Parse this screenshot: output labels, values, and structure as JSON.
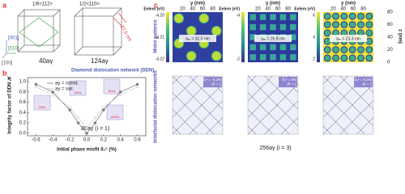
{
  "panel_a": {
    "label": "a",
    "burgers_1": "1/6<112>",
    "burgers_2": "1/2<110>",
    "size": "27.5 nm",
    "axis_z": "[001]",
    "axis_y": "[010]",
    "axis_x": "[100]",
    "cell_1": "40aγ",
    "cell_2": "124aγ",
    "ddn": "Diamond dislocation network (DDN)"
  },
  "chart_data": {
    "type": "line",
    "label": "b",
    "y_label": "Integrity factor of DDN 𝒦",
    "x_label": "Initial phase misfit δ₀ᶜ (%)",
    "x": [
      -0.6,
      -0.4,
      -0.2,
      -0.1,
      0,
      0.1,
      0.2,
      0.4,
      0.6
    ],
    "series": [
      {
        "name": "aγ = const.",
        "color": "#777777",
        "values": [
          0.95,
          0.8,
          0.45,
          0.2,
          0.0,
          0.2,
          0.45,
          0.8,
          0.95
        ]
      },
      {
        "name": "aγ = var.",
        "color": "#b5b5b5",
        "values": [
          0.9,
          0.75,
          0.5,
          0.3,
          0.1,
          0.3,
          0.5,
          0.75,
          0.9
        ]
      }
    ],
    "xlim": [
      -0.7,
      0.7
    ],
    "ylim": [
      -0.05,
      1.08
    ],
    "xticks": [
      -0.6,
      -0.4,
      -0.2,
      {
        "value": 0,
        "label": "0.0"
      },
      0.2,
      0.4,
      0.6
    ],
    "yticks": [
      {
        "value": 0,
        "label": "0.0"
      },
      0.2,
      0.4,
      0.6,
      0.8,
      {
        "value": 1,
        "label": "1.0"
      }
    ],
    "annotation": "86aγ (i = 1)",
    "inset_labels": [
      "SDN",
      "DDN",
      "SDN",
      "sDDN"
    ]
  },
  "panel_c": {
    "label": "c",
    "colorbar_title": "Eelem (eV)",
    "z_axis": "z (nm)",
    "z_ticks": [
      "80",
      "60",
      "40",
      "20",
      "0"
    ],
    "row_1": "Moiré patterns",
    "row_2": "Interfacial dislocation networks",
    "cell": "256aγ (i = 3)",
    "maps": [
      {
        "y_axis": "y (nm)",
        "y_ticks": [
          "20",
          "40",
          "60",
          "80"
        ],
        "colorbar_ticks": [
          "-4.20",
          "-4.21",
          "-4.22"
        ],
        "spacing": "aₘ = 31.5 nm",
        "misfit": "δ₀ᶜ = -0.2%",
        "integrity": "𝒦 = 1"
      },
      {
        "y_axis": "y (nm)",
        "y_ticks": [
          "20",
          "40",
          "60",
          "80"
        ],
        "colorbar_ticks": [
          "-4",
          "-2"
        ],
        "spacing": "aₘ = 26.8 nm",
        "misfit": "δ₀ᶜ = 0%",
        "integrity": "𝒦 = 1"
      },
      {
        "y_axis": "y (nm)",
        "y_ticks": [
          "20",
          "40",
          "60",
          "80"
        ],
        "colorbar_ticks": [
          "6",
          "4",
          "2"
        ],
        "spacing": "aₘ = 23.3 nm",
        "misfit": "δ₀ᶜ = 0.2%",
        "integrity": "𝒦 = 1"
      }
    ]
  }
}
